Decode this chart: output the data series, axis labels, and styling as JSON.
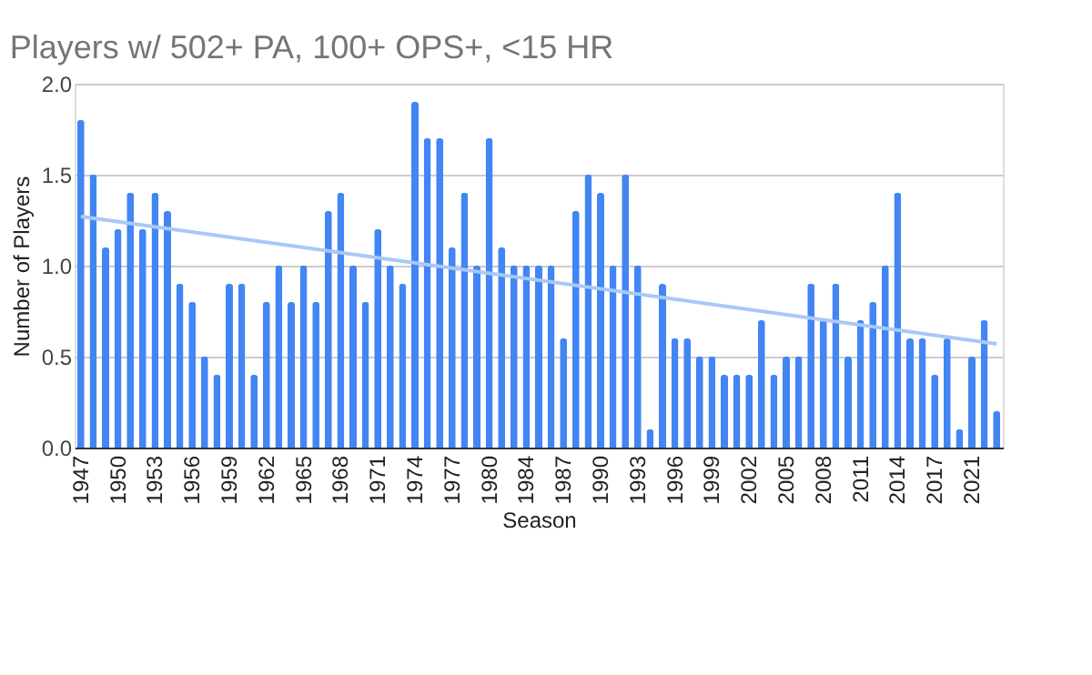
{
  "chart_data": {
    "type": "bar",
    "title": "Players w/ 502+ PA, 100+ OPS+, <15 HR",
    "xlabel": "Season",
    "ylabel": "Number of Players",
    "categories": [
      "1947",
      null,
      null,
      "1950",
      null,
      null,
      "1953",
      null,
      null,
      "1956",
      null,
      null,
      "1959",
      null,
      null,
      "1962",
      null,
      null,
      "1965",
      null,
      null,
      "1968",
      null,
      null,
      "1971",
      null,
      null,
      "1974",
      null,
      null,
      "1977",
      null,
      null,
      "1980",
      null,
      null,
      "1984",
      null,
      null,
      "1987",
      null,
      null,
      "1990",
      null,
      null,
      "1993",
      null,
      null,
      "1996",
      null,
      null,
      "1999",
      null,
      null,
      "2002",
      null,
      null,
      "2005",
      null,
      null,
      "2008",
      null,
      null,
      "2011",
      null,
      null,
      "2014",
      null,
      null,
      "2017",
      null,
      null,
      "2021",
      null,
      null
    ],
    "series": [
      {
        "color": "#4285f4",
        "values": [
          1.8,
          1.5,
          1.1,
          1.2,
          1.4,
          1.2,
          1.4,
          1.3,
          0.9,
          0.8,
          0.5,
          0.4,
          0.9,
          0.9,
          0.4,
          0.8,
          1.0,
          0.8,
          1.0,
          0.8,
          1.3,
          1.4,
          1.0,
          0.8,
          1.2,
          1.0,
          0.9,
          1.9,
          1.7,
          1.7,
          1.1,
          1.4,
          1.0,
          1.7,
          1.1,
          1.0,
          1.0,
          1.0,
          1.0,
          0.6,
          1.3,
          1.5,
          1.4,
          1.0,
          1.5,
          1.0,
          0.1,
          0.9,
          0.6,
          0.6,
          0.5,
          0.5,
          0.4,
          0.4,
          0.4,
          0.7,
          0.4,
          0.5,
          0.5,
          0.9,
          0.7,
          0.9,
          0.5,
          0.7,
          0.8,
          1.0,
          1.4,
          0.6,
          0.6,
          0.4,
          0.6,
          0.1,
          0.5,
          0.7,
          0.2
        ]
      },
      {
        "type": "line",
        "color": "#a9c8f8",
        "values": [
          1.27,
          null,
          null,
          null,
          null,
          null,
          null,
          null,
          null,
          null,
          null,
          null,
          null,
          null,
          null,
          null,
          null,
          null,
          null,
          null,
          null,
          null,
          null,
          null,
          null,
          null,
          null,
          null,
          null,
          null,
          null,
          null,
          null,
          null,
          null,
          null,
          null,
          null,
          null,
          null,
          null,
          null,
          null,
          null,
          null,
          null,
          null,
          null,
          null,
          null,
          null,
          null,
          null,
          null,
          null,
          null,
          null,
          null,
          null,
          null,
          null,
          null,
          null,
          null,
          null,
          null,
          null,
          null,
          null,
          null,
          null,
          null,
          null,
          null,
          0.57
        ]
      }
    ],
    "ylim": [
      0,
      2
    ],
    "yticks": [
      {
        "value": 0,
        "label": "0.0"
      },
      {
        "value": 0.5,
        "label": "0.5"
      },
      {
        "value": 1,
        "label": "1.0"
      },
      {
        "value": 1.5,
        "label": "1.5"
      },
      {
        "value": 2,
        "label": "2.0"
      }
    ],
    "grid": "y"
  }
}
